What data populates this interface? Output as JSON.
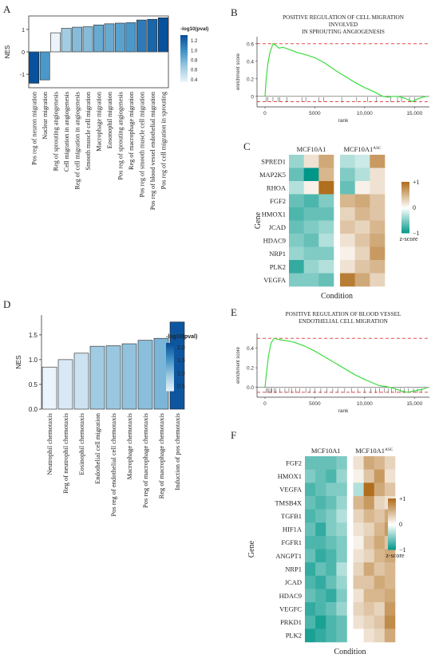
{
  "panels": {
    "A": {
      "letter": "A"
    },
    "B": {
      "letter": "B"
    },
    "C": {
      "letter": "C"
    },
    "D": {
      "letter": "D"
    },
    "E": {
      "letter": "E"
    },
    "F": {
      "letter": "F"
    }
  },
  "chart_data": [
    {
      "id": "A",
      "type": "bar",
      "ylabel": "NES",
      "ylim": [
        -1.6,
        1.6
      ],
      "yticks": [
        -1,
        0,
        1
      ],
      "legend": {
        "title": "-log10(pval)",
        "ticks": [
          "1.2",
          "1.0",
          "0.8",
          "0.6",
          "0.4"
        ],
        "range": [
          0.35,
          1.3
        ],
        "placement": "right"
      },
      "categories": [
        "Pos reg of neuron migration",
        "Nuclear migration",
        "Reg of sprouting angiogenesis",
        "Cell migration in angiogenesis",
        "Reg of cell migration in angiogenesis",
        "Smooth muscle cell migration",
        "Macrophage migration",
        "Eosonophil migration",
        "Pos reg of sprouting angiogenesis",
        "Reg of macrophage migration",
        "Pos reg of smooth muscle cell migration",
        "Pos reg of blood vessel endothelial migration",
        "Pos reg of cell migration in sprouting"
      ],
      "values": [
        -1.4,
        -1.25,
        0.85,
        1.05,
        1.1,
        1.12,
        1.2,
        1.25,
        1.28,
        1.3,
        1.42,
        1.45,
        1.52
      ],
      "color_values": [
        1.3,
        0.95,
        0.35,
        0.65,
        0.75,
        0.75,
        0.85,
        0.85,
        0.9,
        0.95,
        1.1,
        1.2,
        1.3
      ]
    },
    {
      "id": "B",
      "type": "line",
      "title": [
        "POSITIVE REGULATION OF CELL MIGRATION",
        "INVOLVED",
        "IN SPROUTING ANGIOGENESIS"
      ],
      "xlabel": "rank",
      "ylabel": "enrichment score",
      "xlim": [
        -800,
        16500
      ],
      "ylim": [
        -0.12,
        0.68
      ],
      "xticks": [
        0,
        5000,
        10000,
        15000
      ],
      "xtick_labels": [
        "0",
        "5000",
        "10,000",
        "15,000"
      ],
      "yticks": [
        0,
        0.2,
        0.4,
        0.6
      ],
      "ytick_labels": [
        "0",
        "0.2",
        "0.4",
        "0.6"
      ],
      "dashed_levels": [
        0.6,
        -0.06
      ],
      "x": [
        0,
        120,
        300,
        500,
        800,
        1100,
        1400,
        1800,
        2300,
        2800,
        3200,
        3600,
        4200,
        5000,
        6000,
        7000,
        8000,
        9000,
        10000,
        11000,
        11800,
        12400,
        12800,
        13300,
        14000,
        14800,
        15300,
        15800,
        16300
      ],
      "values": [
        0,
        0.2,
        0.38,
        0.5,
        0.6,
        0.58,
        0.55,
        0.56,
        0.54,
        0.52,
        0.5,
        0.49,
        0.47,
        0.44,
        0.38,
        0.3,
        0.23,
        0.16,
        0.1,
        0.05,
        0.0,
        -0.01,
        0.0,
        0.0,
        -0.02,
        -0.06,
        -0.03,
        -0.01,
        0.0
      ],
      "hits": [
        120,
        300,
        800,
        1300,
        1500,
        2200,
        3700,
        4100,
        5400,
        5900,
        7700,
        9200,
        10300,
        11200,
        12600,
        13300,
        13700,
        14500,
        15000
      ]
    },
    {
      "id": "C",
      "type": "heatmap",
      "xlabel": "Condition",
      "ylabel": "Gene",
      "groups": [
        "MCF10A1",
        "MCF10A1"
      ],
      "group_superscript": [
        "",
        "ASC"
      ],
      "legend": {
        "ticks": [
          "+1",
          "0",
          "−1"
        ],
        "caption": "z-score",
        "placement": "right"
      },
      "rows": [
        "SPRED1",
        "MAP2K5",
        "RHOA",
        "FGF2",
        "HMOX1",
        "JCAD",
        "HDAC9",
        "NRP1",
        "PLK2",
        "VEGFA"
      ],
      "values": [
        [
          -0.4,
          0.2,
          0.6,
          -0.3,
          -0.2,
          0.7
        ],
        [
          -0.6,
          -1.0,
          0.5,
          -0.5,
          -0.3,
          0.2
        ],
        [
          -0.3,
          0.1,
          1.0,
          -0.6,
          0.1,
          0.2
        ],
        [
          -0.6,
          -0.7,
          -0.5,
          0.5,
          0.6,
          0.4
        ],
        [
          -0.7,
          -0.6,
          -0.6,
          0.3,
          0.5,
          0.4
        ],
        [
          -0.6,
          -0.5,
          -0.4,
          0.4,
          0.3,
          0.5
        ],
        [
          -0.5,
          -0.6,
          -0.3,
          0.2,
          0.4,
          0.6
        ],
        [
          -0.4,
          -0.5,
          -0.5,
          0.1,
          0.3,
          0.7
        ],
        [
          -0.8,
          -0.4,
          -0.3,
          0.2,
          0.4,
          0.5
        ],
        [
          -0.5,
          -0.5,
          -0.6,
          0.9,
          0.6,
          0.3
        ]
      ]
    },
    {
      "id": "D",
      "type": "bar",
      "ylabel": "NES",
      "ylim": [
        0,
        1.9
      ],
      "yticks": [
        0,
        0.5,
        1.0,
        1.5
      ],
      "ytick_labels": [
        "0.0",
        "0.5",
        "1.0",
        "1.5"
      ],
      "legend": {
        "title": "-log10(pval)",
        "ticks": [
          "2.0",
          "1.5",
          "1.0",
          "0.5"
        ],
        "range": [
          0.3,
          2.15
        ],
        "placement": "right"
      },
      "categories": [
        "Neutrophil chemotaxis",
        "Reg of neutrophil chemotaxis",
        "Eosinophil chemotaxis",
        "Endothelial cell migration",
        "Pos reg of endothelial cell chemotaxis",
        "Macrophage chemotaxis",
        "Pos reg of macrophage chemotaxis",
        "Reg of macrophage chemotaxis",
        "Induction of pos chemotaxis"
      ],
      "values": [
        0.85,
        1.0,
        1.13,
        1.27,
        1.28,
        1.32,
        1.39,
        1.43,
        1.76
      ],
      "color_values": [
        0.3,
        0.45,
        0.55,
        0.9,
        0.95,
        1.0,
        1.05,
        1.15,
        2.1
      ]
    },
    {
      "id": "E",
      "type": "line",
      "title": [
        "POSITIVE REGULATION OF BLOOD VESSEL",
        "ENDOTHELIAL CELL MIGRATION"
      ],
      "xlabel": "rank",
      "ylabel": "enrichment score",
      "xlim": [
        -800,
        16500
      ],
      "ylim": [
        -0.1,
        0.55
      ],
      "xticks": [
        0,
        5000,
        10000,
        15000
      ],
      "xtick_labels": [
        "0",
        "5000",
        "10,000",
        "15,000"
      ],
      "yticks": [
        0,
        0.2,
        0.4
      ],
      "ytick_labels": [
        "0.0",
        "0.2",
        "0.4"
      ],
      "dashed_levels": [
        0.5,
        -0.05
      ],
      "x": [
        0,
        150,
        350,
        600,
        900,
        1300,
        1800,
        2500,
        3200,
        4000,
        5000,
        6000,
        7000,
        8000,
        9000,
        10000,
        10700,
        11400,
        12000,
        12600,
        13200,
        13800,
        14300,
        14800,
        15300,
        15800,
        16300
      ],
      "values": [
        0,
        0.15,
        0.32,
        0.45,
        0.5,
        0.49,
        0.48,
        0.47,
        0.45,
        0.42,
        0.37,
        0.31,
        0.25,
        0.19,
        0.13,
        0.08,
        0.05,
        0.02,
        0.01,
        0.0,
        -0.02,
        -0.04,
        -0.05,
        -0.04,
        -0.03,
        -0.02,
        0.0
      ],
      "hits": [
        150,
        250,
        400,
        600,
        700,
        900,
        1100,
        1500,
        2000,
        2400,
        2700,
        3100,
        3500,
        4100,
        4500,
        5000,
        5600,
        6200,
        6800,
        7300,
        8000,
        8700,
        9300,
        10000,
        10600,
        11100,
        11500,
        12000,
        12400,
        12700,
        13100,
        13600,
        14000,
        14400,
        14900,
        15300,
        15700
      ]
    },
    {
      "id": "F",
      "type": "heatmap",
      "xlabel": "Condition",
      "ylabel": "Gene",
      "groups": [
        "MCF10A1",
        "MCF10A1"
      ],
      "group_superscript": [
        "",
        "ASC"
      ],
      "legend": {
        "ticks": [
          "+1",
          "0",
          "−1"
        ],
        "caption": "z-score",
        "placement": "right"
      },
      "rows": [
        "FGF2",
        "HMOX1",
        "VEGFA",
        "TMSB4X",
        "TGFB1",
        "HIF1A",
        "FGFR1",
        "ANGPT1",
        "NRP1",
        "JCAD",
        "HDAC9",
        "VEGFC",
        "PRKD1",
        "PLK2"
      ],
      "values": [
        [
          -0.6,
          -0.6,
          -0.6,
          -0.5,
          0.2,
          0.6,
          0.5,
          0.3
        ],
        [
          -0.5,
          -0.6,
          -0.7,
          -0.4,
          0.1,
          0.4,
          0.7,
          0.2
        ],
        [
          -0.7,
          -0.6,
          -0.5,
          -0.5,
          -0.3,
          1.0,
          0.6,
          0.4
        ],
        [
          -0.6,
          -0.7,
          -0.6,
          -0.4,
          0.5,
          0.7,
          0.3,
          0.2
        ],
        [
          -0.7,
          -0.6,
          -0.5,
          -0.3,
          0.3,
          0.5,
          0.4,
          0.6
        ],
        [
          -0.6,
          -0.8,
          -0.5,
          -0.4,
          0.2,
          0.3,
          0.5,
          0.7
        ],
        [
          -0.7,
          -0.7,
          -0.6,
          -0.5,
          0.1,
          0.4,
          0.6,
          0.4
        ],
        [
          -0.6,
          -0.8,
          -0.7,
          -0.5,
          0.2,
          0.3,
          0.5,
          0.6
        ],
        [
          -0.8,
          -0.6,
          -0.7,
          -0.3,
          0.3,
          0.6,
          0.4,
          0.5
        ],
        [
          -0.7,
          -0.8,
          -0.6,
          -0.4,
          0.4,
          0.4,
          0.6,
          0.5
        ],
        [
          -0.6,
          -0.7,
          -0.8,
          -0.5,
          0.2,
          0.5,
          0.5,
          0.6
        ],
        [
          -0.8,
          -0.7,
          -0.6,
          -0.4,
          0.3,
          0.4,
          0.3,
          0.7
        ],
        [
          -0.7,
          -0.9,
          -0.7,
          -0.6,
          0.2,
          0.3,
          0.4,
          0.8
        ],
        [
          -0.9,
          -0.8,
          -0.7,
          -0.6,
          0.0,
          0.2,
          0.3,
          0.6
        ]
      ]
    }
  ]
}
